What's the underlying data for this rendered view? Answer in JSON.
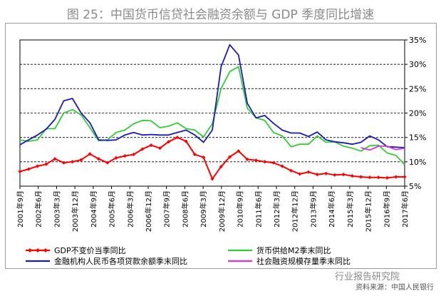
{
  "title": "图 25：中国货币信贷社会融资余额与 GDP 季度同比增速",
  "source": "资料来源：中国人民银行",
  "watermark": "行业报告研究院",
  "colors": {
    "gdp": "#ff0000",
    "m2": "#33cc33",
    "loans": "#1a1ab8",
    "tsf": "#dd33dd"
  },
  "chart_data": {
    "type": "line",
    "title": "图 25：中国货币信贷社会融资余额与 GDP 季度同比增速",
    "xlabel": "",
    "ylabel": "",
    "ylim": [
      5,
      35
    ],
    "y_ticks": [
      "5%",
      "10%",
      "15%",
      "20%",
      "25%",
      "30%",
      "35%"
    ],
    "x_ticks": [
      "2001年9月",
      "2002年6月",
      "2003年3月",
      "2003年12月",
      "2004年9月",
      "2005年6月",
      "2006年3月",
      "2006年12月",
      "2007年9月",
      "2008年6月",
      "2009年3月",
      "2009年12月",
      "2010年9月",
      "2011年6月",
      "2012年3月",
      "2012年12月",
      "2013年9月",
      "2014年6月",
      "2015年3月",
      "2015年12月",
      "2016年9月",
      "2017年6月"
    ],
    "grid": "horizontal dashed",
    "legend": "bottom",
    "series": [
      {
        "name": "GDP不变价当季同比",
        "color": "#ff0000",
        "marker": "diamond",
        "values": [
          8.0,
          8.5,
          9.1,
          9.5,
          10.6,
          9.8,
          10.0,
          10.4,
          11.6,
          10.6,
          9.8,
          10.8,
          11.2,
          11.5,
          12.6,
          13.4,
          12.8,
          14.1,
          15.0,
          14.2,
          11.5,
          10.9,
          6.5,
          9.0,
          11.0,
          12.2,
          10.5,
          10.3,
          10.0,
          9.8,
          9.1,
          8.2,
          7.5,
          7.9,
          7.4,
          7.6,
          7.3,
          7.4,
          7.1,
          6.9,
          6.8,
          6.8,
          6.7,
          6.9,
          6.9
        ]
      },
      {
        "name": "货币供给M2季末同比",
        "color": "#33cc33",
        "values": [
          14.5,
          14.2,
          14.5,
          16.8,
          16.8,
          20.0,
          20.7,
          19.6,
          17.0,
          14.3,
          14.5,
          16.0,
          16.5,
          17.8,
          18.5,
          18.4,
          17.0,
          17.3,
          18.0,
          16.8,
          16.5,
          15.1,
          17.8,
          25.0,
          28.5,
          29.5,
          21.0,
          19.0,
          18.5,
          16.0,
          15.3,
          13.1,
          13.6,
          13.6,
          15.3,
          14.0,
          14.1,
          13.2,
          12.8,
          12.2,
          13.3,
          13.4,
          11.8,
          11.3,
          9.4
        ]
      },
      {
        "name": "金融机构人民币各项贷款余额季末同比",
        "color": "#1a1ab8",
        "values": [
          13.5,
          14.5,
          15.5,
          16.7,
          18.7,
          22.5,
          23.0,
          20.0,
          18.0,
          14.5,
          14.4,
          14.5,
          15.5,
          16.0,
          15.5,
          15.6,
          15.5,
          15.5,
          16.0,
          16.5,
          15.5,
          14.0,
          16.5,
          29.5,
          34.0,
          31.9,
          22.0,
          19.0,
          19.5,
          17.9,
          16.5,
          15.9,
          15.9,
          15.2,
          16.1,
          14.5,
          14.1,
          13.9,
          13.6,
          14.0,
          15.3,
          14.5,
          13.1,
          13.0,
          12.9
        ]
      },
      {
        "name": "社会融资规模存量季末同比",
        "color": "#dd33dd",
        "start_index": 39,
        "values": [
          12.9,
          12.4,
          13.2,
          13.2,
          12.5,
          12.8
        ]
      }
    ]
  }
}
